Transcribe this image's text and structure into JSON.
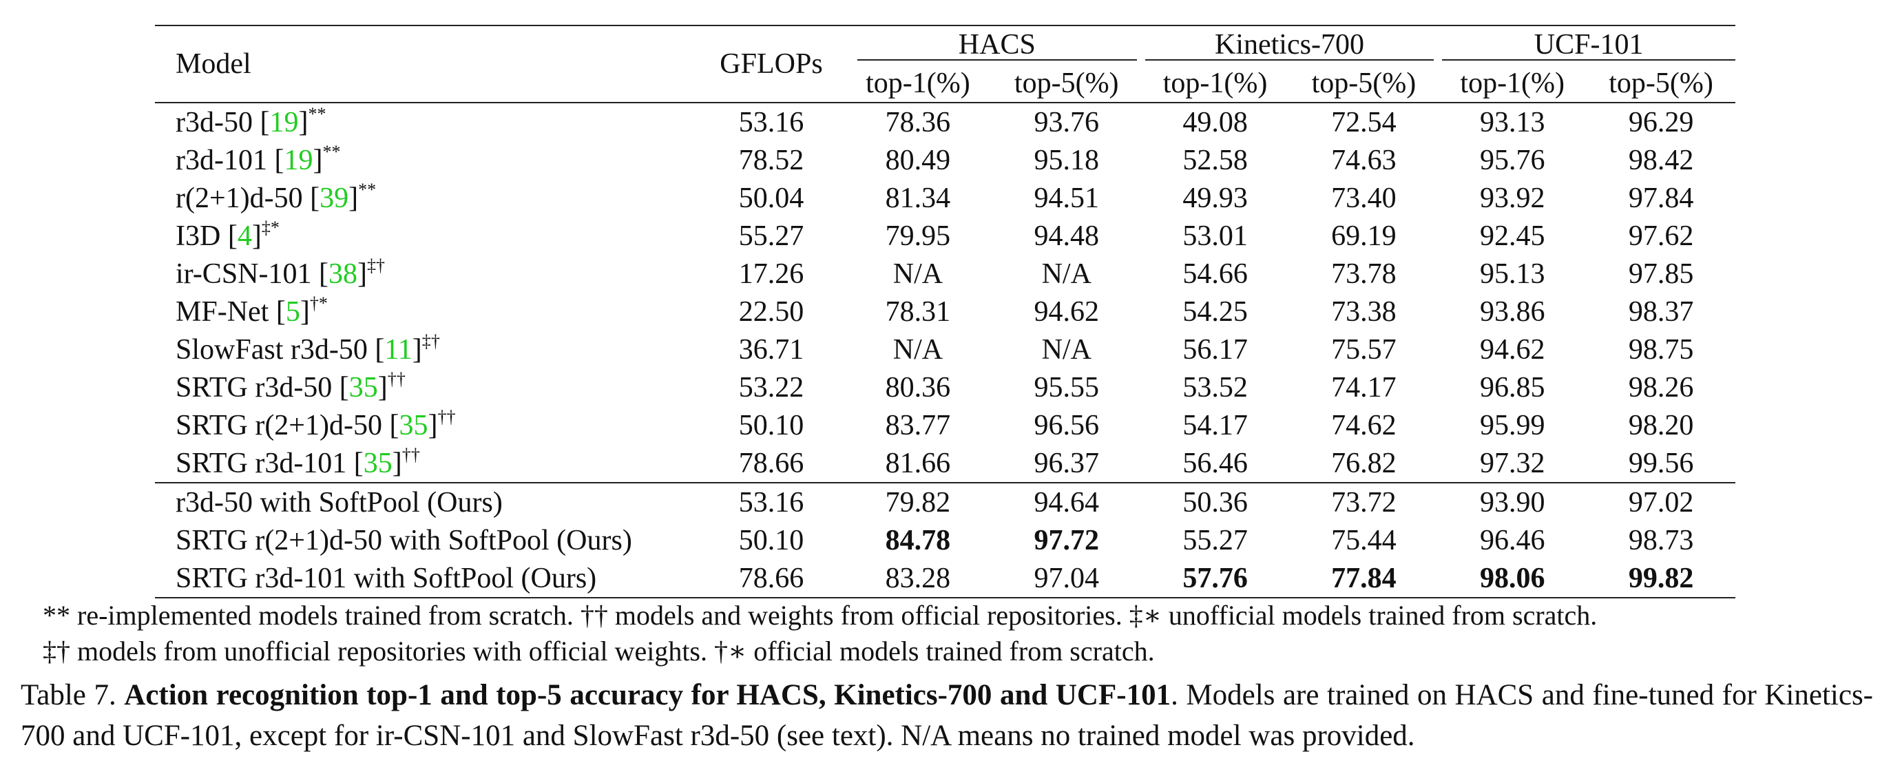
{
  "table": {
    "header": {
      "model": "Model",
      "gflops": "GFLOPs",
      "groups": [
        "HACS",
        "Kinetics-700",
        "UCF-101"
      ],
      "subcols": [
        "top-1(%)",
        "top-5(%)",
        "top-1(%)",
        "top-5(%)",
        "top-1(%)",
        "top-5(%)"
      ]
    },
    "rows": [
      {
        "name": "r3d-50 [",
        "cite": "19",
        "close": "]",
        "sup": "**",
        "gflops": "53.16",
        "vals": [
          "78.36",
          "93.76",
          "49.08",
          "72.54",
          "93.13",
          "96.29"
        ],
        "bold": [
          false,
          false,
          false,
          false,
          false,
          false
        ]
      },
      {
        "name": "r3d-101 [",
        "cite": "19",
        "close": "]",
        "sup": "**",
        "gflops": "78.52",
        "vals": [
          "80.49",
          "95.18",
          "52.58",
          "74.63",
          "95.76",
          "98.42"
        ],
        "bold": [
          false,
          false,
          false,
          false,
          false,
          false
        ]
      },
      {
        "name": "r(2+1)d-50 [",
        "cite": "39",
        "close": "]",
        "sup": "**",
        "gflops": "50.04",
        "vals": [
          "81.34",
          "94.51",
          "49.93",
          "73.40",
          "93.92",
          "97.84"
        ],
        "bold": [
          false,
          false,
          false,
          false,
          false,
          false
        ]
      },
      {
        "name": "I3D [",
        "cite": "4",
        "close": "]",
        "sup": "‡*",
        "gflops": "55.27",
        "vals": [
          "79.95",
          "94.48",
          "53.01",
          "69.19",
          "92.45",
          "97.62"
        ],
        "bold": [
          false,
          false,
          false,
          false,
          false,
          false
        ]
      },
      {
        "name": "ir-CSN-101 [",
        "cite": "38",
        "close": "]",
        "sup": "‡†",
        "gflops": "17.26",
        "vals": [
          "N/A",
          "N/A",
          "54.66",
          "73.78",
          "95.13",
          "97.85"
        ],
        "bold": [
          false,
          false,
          false,
          false,
          false,
          false
        ]
      },
      {
        "name": "MF-Net [",
        "cite": "5",
        "close": "]",
        "sup": "†*",
        "gflops": "22.50",
        "vals": [
          "78.31",
          "94.62",
          "54.25",
          "73.38",
          "93.86",
          "98.37"
        ],
        "bold": [
          false,
          false,
          false,
          false,
          false,
          false
        ]
      },
      {
        "name": "SlowFast r3d-50 [",
        "cite": "11",
        "close": "]",
        "sup": "‡†",
        "gflops": "36.71",
        "vals": [
          "N/A",
          "N/A",
          "56.17",
          "75.57",
          "94.62",
          "98.75"
        ],
        "bold": [
          false,
          false,
          false,
          false,
          false,
          false
        ]
      },
      {
        "name": "SRTG r3d-50 [",
        "cite": "35",
        "close": "]",
        "sup": "††",
        "gflops": "53.22",
        "vals": [
          "80.36",
          "95.55",
          "53.52",
          "74.17",
          "96.85",
          "98.26"
        ],
        "bold": [
          false,
          false,
          false,
          false,
          false,
          false
        ]
      },
      {
        "name": "SRTG r(2+1)d-50 [",
        "cite": "35",
        "close": "]",
        "sup": "††",
        "gflops": "50.10",
        "vals": [
          "83.77",
          "96.56",
          "54.17",
          "74.62",
          "95.99",
          "98.20"
        ],
        "bold": [
          false,
          false,
          false,
          false,
          false,
          false
        ]
      },
      {
        "name": "SRTG r3d-101 [",
        "cite": "35",
        "close": "]",
        "sup": "††",
        "gflops": "78.66",
        "vals": [
          "81.66",
          "96.37",
          "56.46",
          "76.82",
          "97.32",
          "99.56"
        ],
        "bold": [
          false,
          false,
          false,
          false,
          false,
          false
        ]
      },
      {
        "name": "r3d-50 with SoftPool (Ours)",
        "cite": "",
        "close": "",
        "sup": "",
        "gflops": "53.16",
        "vals": [
          "79.82",
          "94.64",
          "50.36",
          "73.72",
          "93.90",
          "97.02"
        ],
        "bold": [
          false,
          false,
          false,
          false,
          false,
          false
        ]
      },
      {
        "name": "SRTG r(2+1)d-50 with SoftPool (Ours)",
        "cite": "",
        "close": "",
        "sup": "",
        "gflops": "50.10",
        "vals": [
          "84.78",
          "97.72",
          "55.27",
          "75.44",
          "96.46",
          "98.73"
        ],
        "bold": [
          true,
          true,
          false,
          false,
          false,
          false
        ]
      },
      {
        "name": "SRTG r3d-101 with SoftPool (Ours)",
        "cite": "",
        "close": "",
        "sup": "",
        "gflops": "78.66",
        "vals": [
          "83.28",
          "97.04",
          "57.76",
          "77.84",
          "98.06",
          "99.82"
        ],
        "bold": [
          false,
          false,
          true,
          true,
          true,
          true
        ]
      }
    ]
  },
  "footnotes": [
    "** re-implemented models trained from scratch. †† models and weights from official repositories. ‡∗ unofficial models trained from scratch.",
    "‡† models from unofficial repositories with official weights. †∗ official models trained from scratch."
  ],
  "caption": {
    "label": "Table 7.",
    "title": "Action recognition top-1 and top-5 accuracy for HACS, Kinetics-700 and UCF-101",
    "text": ". Models are trained on HACS and fine-tuned for Kinetics-700 and UCF-101, except for ir-CSN-101 and SlowFast r3d-50 (see text). N/A means no trained model was provided."
  }
}
